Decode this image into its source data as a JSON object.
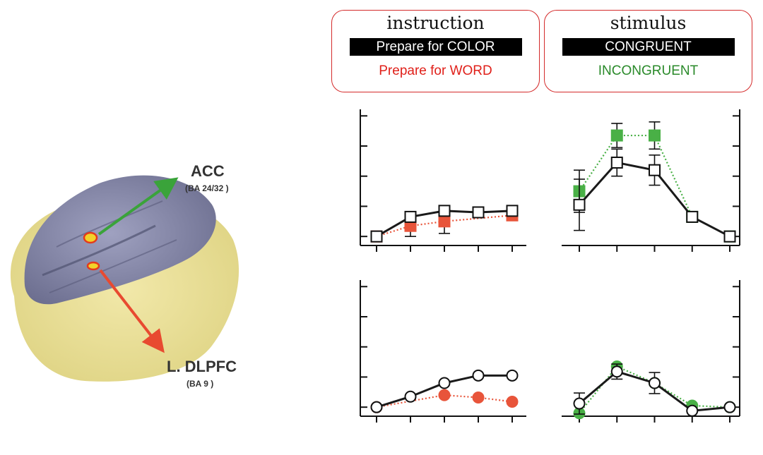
{
  "brain": {
    "acc_label": "ACC",
    "acc_sub": "(BA 24/32 )",
    "dlpfc_label": "L. DLPFC",
    "dlpfc_sub": "(BA 9 )"
  },
  "legends": {
    "instruction": {
      "title": "instruction",
      "black_item": "Prepare for COLOR",
      "colored_item": "Prepare for WORD",
      "colored_color": "#e0201a"
    },
    "stimulus": {
      "title": "stimulus",
      "black_item": "CONGRUENT",
      "colored_item": "INCONGRUENT",
      "colored_color": "#2a8a2a"
    }
  },
  "colors": {
    "black_series": "#1a1a1a",
    "red_series": "#e8543a",
    "green_series": "#49b046",
    "frame": "#c8282a"
  },
  "chart_data": [
    {
      "type": "line",
      "marker": "square",
      "axis_side": "left",
      "x": [
        1,
        2,
        3,
        4,
        5
      ],
      "ylim": [
        -0.3,
        4.1
      ],
      "yticks": [
        0,
        1,
        2,
        3,
        4
      ],
      "series": [
        {
          "values": [
            0.0,
            0.65,
            0.85,
            0.8,
            0.85
          ],
          "color": "black",
          "marker_fill": "white",
          "line": "solid"
        },
        {
          "values": [
            0.0,
            0.35,
            0.5,
            null,
            0.7
          ],
          "color": "red",
          "marker_fill": "red",
          "line": "dotted",
          "error": [
            null,
            0.35,
            0.4,
            null,
            null
          ]
        }
      ]
    },
    {
      "type": "line",
      "marker": "square",
      "axis_side": "right",
      "x": [
        1,
        2,
        3,
        4,
        5
      ],
      "ylim": [
        -0.3,
        4.1
      ],
      "yticks": [
        0,
        1,
        2,
        3,
        4
      ],
      "series": [
        {
          "values": [
            1.05,
            2.45,
            2.2,
            0.65,
            0.0
          ],
          "color": "black",
          "marker_fill": "white",
          "line": "solid",
          "error": [
            0.85,
            0.45,
            0.5,
            null,
            null
          ]
        },
        {
          "values": [
            1.5,
            3.35,
            3.35,
            0.65,
            0.0
          ],
          "color": "green",
          "marker_fill": "green",
          "line": "dotted",
          "error": [
            0.7,
            0.4,
            0.45,
            null,
            null
          ]
        }
      ]
    },
    {
      "type": "line",
      "marker": "circle",
      "axis_side": "left",
      "x": [
        1,
        2,
        3,
        4,
        5
      ],
      "ylim": [
        -0.3,
        4.1
      ],
      "yticks": [
        0,
        1,
        2,
        3,
        4
      ],
      "series": [
        {
          "values": [
            0.0,
            0.35,
            0.8,
            1.05,
            1.05
          ],
          "color": "black",
          "marker_fill": "white",
          "line": "solid"
        },
        {
          "values": [
            0.0,
            null,
            0.4,
            0.32,
            0.18
          ],
          "color": "red",
          "marker_fill": "red",
          "line": "dotted"
        }
      ]
    },
    {
      "type": "line",
      "marker": "circle",
      "axis_side": "right",
      "x": [
        1,
        2,
        3,
        4,
        5
      ],
      "ylim": [
        -0.3,
        4.1
      ],
      "yticks": [
        0,
        1,
        2,
        3,
        4
      ],
      "series": [
        {
          "values": [
            0.12,
            1.18,
            0.8,
            -0.12,
            0.0
          ],
          "color": "black",
          "marker_fill": "white",
          "line": "solid",
          "error": [
            0.35,
            0.25,
            0.35,
            null,
            null
          ]
        },
        {
          "values": [
            -0.2,
            1.35,
            0.8,
            0.05,
            0.0
          ],
          "color": "green",
          "marker_fill": "green",
          "line": "dotted"
        }
      ]
    }
  ]
}
